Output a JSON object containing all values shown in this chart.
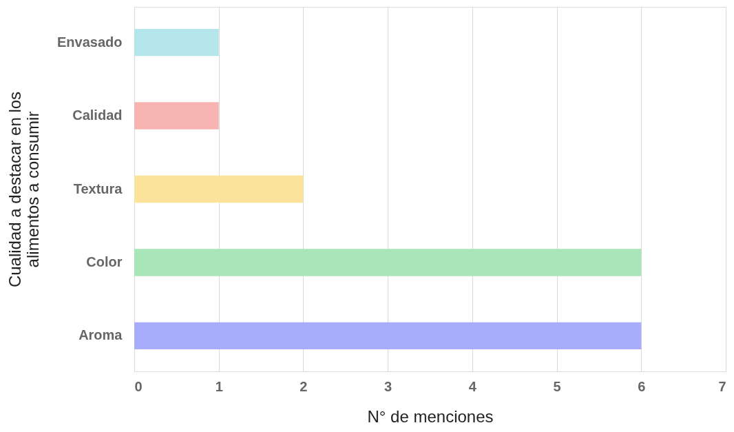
{
  "chart_data": {
    "type": "bar",
    "orientation": "horizontal",
    "categories": [
      "Envasado",
      "Calidad",
      "Textura",
      "Color",
      "Aroma"
    ],
    "values": [
      1,
      1,
      2,
      6,
      6
    ],
    "colors": [
      "#b3e5ea",
      "#f6b3b0",
      "#fce39b",
      "#a8e5b8",
      "#a8acfc"
    ],
    "xlabel": "N° de menciones",
    "ylabel": "Cualidad a destacar en los alimentos a consumir",
    "xlim": [
      0,
      7
    ],
    "xticks": [
      0,
      1,
      2,
      3,
      4,
      5,
      6,
      7
    ],
    "grid": "x"
  }
}
